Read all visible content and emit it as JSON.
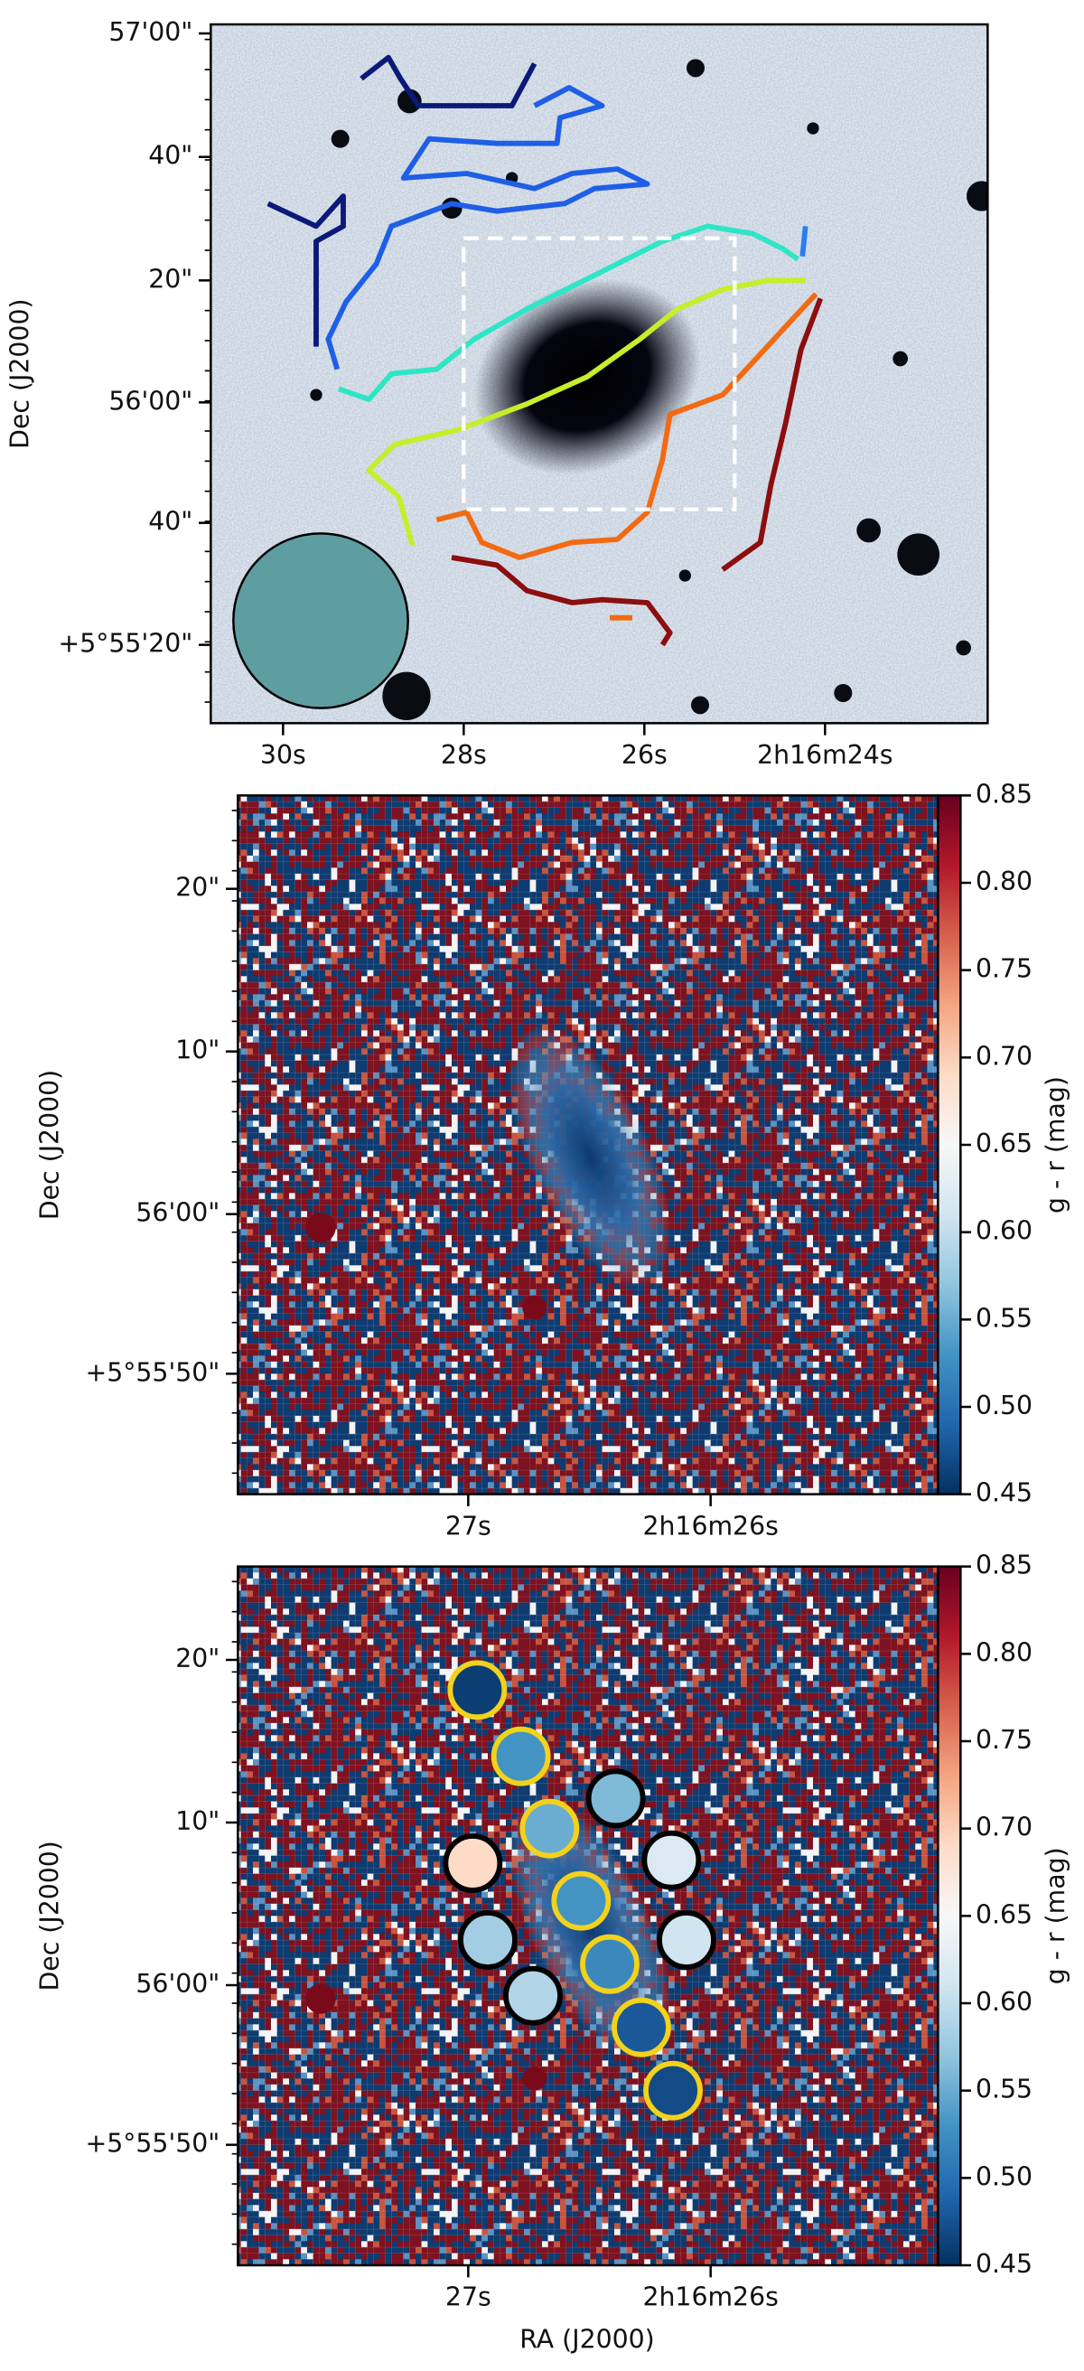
{
  "panels": [
    {
      "y_label": "Dec (J2000)",
      "yticks": [
        "57'00\"",
        "40\"",
        "20\"",
        "56'00\"",
        "40\"",
        "+5°55'20\""
      ],
      "xticks": [
        "30s",
        "28s",
        "26s",
        "2h16m24s"
      ]
    },
    {
      "y_label": "Dec (J2000)",
      "yticks": [
        "20\"",
        "10\"",
        "56'00\"",
        "+5°55'50\""
      ],
      "xticks": [
        "27s",
        "2h16m26s"
      ],
      "colorbar": {
        "label": "g - r (mag)",
        "clim": [
          0.45,
          0.85
        ],
        "ticks": [
          0.85,
          {
            "value": 0.8,
            "label": "0.80"
          },
          0.75,
          {
            "value": 0.7,
            "label": "0.70"
          },
          0.65,
          {
            "value": 0.6,
            "label": "0.60"
          },
          0.55,
          {
            "value": 0.5,
            "label": "0.50"
          },
          0.45
        ]
      }
    },
    {
      "y_label": "Dec (J2000)",
      "x_label": "RA (J2000)",
      "yticks": [
        "20\"",
        "10\"",
        "56'00\"",
        "+5°55'50\""
      ],
      "xticks": [
        "27s",
        "2h16m26s"
      ],
      "colorbar": {
        "label": "g - r (mag)",
        "clim": [
          0.45,
          0.85
        ],
        "ticks": [
          0.85,
          {
            "value": 0.8,
            "label": "0.80"
          },
          0.75,
          {
            "value": 0.7,
            "label": "0.70"
          },
          0.65,
          {
            "value": 0.6,
            "label": "0.60"
          },
          0.55,
          {
            "value": 0.5,
            "label": "0.50"
          },
          0.45
        ]
      },
      "regions": [
        {
          "value": 0.46,
          "edge": "#f2d21b"
        },
        {
          "value": 0.53,
          "edge": "#f2d21b"
        },
        {
          "value": 0.55,
          "edge": "#f2d21b"
        },
        {
          "value": 0.53,
          "edge": "#f2d21b"
        },
        {
          "value": 0.52,
          "edge": "#f2d21b"
        },
        {
          "value": 0.48,
          "edge": "#f2d21b"
        },
        {
          "value": 0.47,
          "edge": "#f2d21b"
        },
        {
          "value": 0.56,
          "edge": "#000000"
        },
        {
          "value": 0.62,
          "edge": "#000000"
        },
        {
          "value": 0.61,
          "edge": "#000000"
        },
        {
          "value": 0.69,
          "edge": "#000000"
        },
        {
          "value": 0.58,
          "edge": "#000000"
        },
        {
          "value": 0.59,
          "edge": "#000000"
        }
      ]
    }
  ]
}
